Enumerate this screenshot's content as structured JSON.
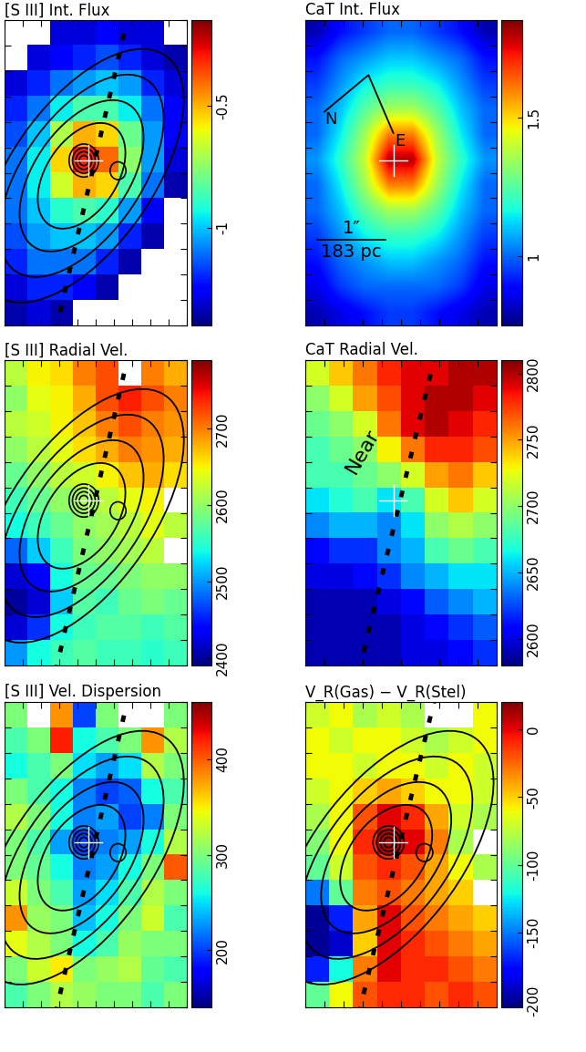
{
  "chart_data": [
    {
      "type": "heatmap",
      "title": "[S III] Int. Flux",
      "tick_labels": false,
      "clim": [
        -1.4,
        -0.15
      ],
      "cticks": [
        -1,
        -0.5
      ],
      "cells": [
        [
          null,
          null,
          -1.3,
          -1.3,
          -1.25,
          -1.3,
          -1.3,
          null
        ],
        [
          null,
          -1.3,
          -1.25,
          -1.2,
          -1.15,
          -1.2,
          -1.3,
          -1.35
        ],
        [
          -1.3,
          -1.2,
          -1.1,
          -1.05,
          -1.0,
          -1.05,
          -1.2,
          -1.3
        ],
        [
          -1.2,
          -1.1,
          -0.95,
          -0.85,
          -0.85,
          -0.95,
          -1.1,
          -1.25
        ],
        [
          -1.15,
          -1.0,
          -0.7,
          -0.5,
          -0.55,
          -0.8,
          -1.05,
          -1.25
        ],
        [
          -1.1,
          -0.95,
          -0.55,
          -0.3,
          -0.4,
          -0.75,
          -1.05,
          -1.3
        ],
        [
          -1.1,
          -0.95,
          -0.65,
          -0.5,
          -0.55,
          -0.85,
          -1.1,
          -1.35
        ],
        [
          -1.1,
          -1.0,
          -0.9,
          -0.85,
          -0.9,
          -1.05,
          -1.25,
          null
        ],
        [
          -1.15,
          -1.05,
          -1.0,
          -1.0,
          -1.05,
          -1.2,
          -1.35,
          null
        ],
        [
          -1.2,
          -1.1,
          -1.1,
          -1.1,
          -1.2,
          -1.35,
          null,
          null
        ],
        [
          -1.3,
          -1.2,
          -1.2,
          -1.25,
          -1.35,
          null,
          null,
          null
        ],
        [
          -1.35,
          -1.3,
          -1.35,
          null,
          null,
          null,
          null,
          null
        ]
      ],
      "annotations": []
    },
    {
      "type": "heatmap",
      "title": "CaT Int. Flux",
      "tick_labels": false,
      "clim": [
        0.75,
        1.85
      ],
      "cticks": [
        1,
        1.5
      ],
      "cells": [
        [
          0.8,
          0.9,
          0.95,
          1.0,
          1.0,
          0.95,
          0.9,
          0.8
        ],
        [
          0.9,
          1.0,
          1.05,
          1.1,
          1.1,
          1.05,
          1.0,
          0.9
        ],
        [
          0.95,
          1.05,
          1.15,
          1.2,
          1.2,
          1.15,
          1.05,
          0.95
        ],
        [
          1.0,
          1.1,
          1.25,
          1.35,
          1.35,
          1.25,
          1.1,
          1.0
        ],
        [
          1.0,
          1.15,
          1.35,
          1.6,
          1.6,
          1.35,
          1.15,
          1.0
        ],
        [
          1.05,
          1.2,
          1.4,
          1.8,
          1.8,
          1.4,
          1.2,
          1.05
        ],
        [
          1.0,
          1.15,
          1.35,
          1.6,
          1.6,
          1.35,
          1.15,
          1.0
        ],
        [
          1.0,
          1.1,
          1.25,
          1.35,
          1.35,
          1.25,
          1.1,
          1.0
        ],
        [
          0.95,
          1.05,
          1.15,
          1.2,
          1.2,
          1.15,
          1.05,
          0.95
        ],
        [
          0.9,
          1.0,
          1.05,
          1.1,
          1.1,
          1.05,
          1.0,
          0.9
        ],
        [
          0.85,
          0.95,
          1.0,
          1.0,
          1.0,
          1.0,
          0.95,
          0.85
        ],
        [
          0.8,
          0.85,
          0.9,
          0.95,
          0.95,
          0.9,
          0.85,
          0.8
        ]
      ],
      "annotations": [
        "N",
        "E",
        "1″",
        "183 pc"
      ]
    },
    {
      "type": "heatmap",
      "title": "[S III] Radial Vel.",
      "tick_labels": false,
      "clim": [
        2390,
        2790
      ],
      "cticks": [
        2400,
        2500,
        2600,
        2700
      ],
      "cells": [
        [
          2620,
          2650,
          2660,
          2700,
          2720,
          null,
          2700,
          2680
        ],
        [
          2600,
          2640,
          2650,
          2680,
          2720,
          2740,
          2720,
          2700
        ],
        [
          2620,
          2630,
          2650,
          2670,
          2700,
          2720,
          2700,
          2690
        ],
        [
          2600,
          2620,
          2640,
          2660,
          2680,
          2700,
          2690,
          2680
        ],
        [
          2580,
          2600,
          2620,
          2630,
          2650,
          2670,
          2680,
          2660
        ],
        [
          2560,
          2580,
          2600,
          2610,
          2620,
          2640,
          2650,
          null
        ],
        [
          2540,
          2560,
          2580,
          2600,
          2610,
          2620,
          2640,
          2620
        ],
        [
          2480,
          2520,
          2560,
          2590,
          2600,
          2610,
          2620,
          null
        ],
        [
          2420,
          2440,
          2540,
          2580,
          2580,
          2590,
          2600,
          2600
        ],
        [
          2400,
          2420,
          2520,
          2570,
          2560,
          2580,
          2590,
          2580
        ],
        [
          2420,
          2460,
          2540,
          2560,
          2570,
          2570,
          2560,
          2570
        ],
        [
          2500,
          2540,
          2560,
          2570,
          2560,
          2560,
          2550,
          2560
        ]
      ],
      "annotations": []
    },
    {
      "type": "heatmap",
      "title": "CaT Radial Vel.",
      "tick_labels": false,
      "clim": [
        2580,
        2810
      ],
      "cticks": [
        2600,
        2650,
        2700,
        2750,
        2800
      ],
      "cells": [
        [
          2720,
          2740,
          2760,
          2780,
          2790,
          2790,
          2800,
          2800
        ],
        [
          2700,
          2720,
          2750,
          2770,
          2790,
          2800,
          2800,
          2790
        ],
        [
          2690,
          2700,
          2720,
          2760,
          2790,
          2800,
          2790,
          2780
        ],
        [
          2680,
          2690,
          2700,
          2730,
          2760,
          2780,
          2780,
          2770
        ],
        [
          2680,
          2680,
          2690,
          2700,
          2720,
          2750,
          2760,
          2740
        ],
        [
          2660,
          2670,
          2680,
          2660,
          2680,
          2720,
          2740,
          2720
        ],
        [
          2640,
          2650,
          2650,
          2640,
          2660,
          2700,
          2710,
          2700
        ],
        [
          2610,
          2620,
          2620,
          2640,
          2650,
          2680,
          2690,
          2680
        ],
        [
          2600,
          2600,
          2610,
          2620,
          2640,
          2650,
          2660,
          2660
        ],
        [
          2590,
          2590,
          2590,
          2600,
          2610,
          2630,
          2640,
          2650
        ],
        [
          2590,
          2590,
          2590,
          2590,
          2600,
          2610,
          2620,
          2630
        ],
        [
          2590,
          2590,
          2590,
          2590,
          2600,
          2600,
          2610,
          2620
        ]
      ],
      "annotations": [
        "Near"
      ]
    },
    {
      "type": "heatmap",
      "title": "[S III] Vel. Dispersion",
      "tick_labels": false,
      "clim": [
        140,
        460
      ],
      "cticks": [
        200,
        300,
        400
      ],
      "cells": [
        [
          300,
          null,
          380,
          200,
          300,
          null,
          null,
          300
        ],
        [
          280,
          300,
          420,
          260,
          280,
          300,
          380,
          320
        ],
        [
          260,
          280,
          300,
          250,
          230,
          250,
          320,
          300
        ],
        [
          300,
          280,
          260,
          220,
          200,
          210,
          260,
          280
        ],
        [
          320,
          300,
          260,
          220,
          230,
          200,
          220,
          300
        ],
        [
          300,
          280,
          230,
          200,
          220,
          230,
          260,
          320
        ],
        [
          300,
          290,
          260,
          220,
          230,
          260,
          300,
          400
        ],
        [
          330,
          300,
          280,
          230,
          250,
          280,
          320,
          300
        ],
        [
          380,
          310,
          300,
          240,
          260,
          300,
          330,
          280
        ],
        [
          340,
          320,
          300,
          260,
          280,
          310,
          300,
          300
        ],
        [
          300,
          330,
          350,
          300,
          310,
          320,
          290,
          280
        ],
        [
          280,
          300,
          320,
          310,
          300,
          300,
          280,
          300
        ]
      ],
      "annotations": []
    },
    {
      "type": "heatmap",
      "title": "V_R(Gas) − V_R(Stel)",
      "tick_labels": false,
      "clim": [
        -205,
        20
      ],
      "cticks": [
        -200,
        -150,
        -100,
        -50,
        0
      ],
      "cells": [
        [
          -70,
          -60,
          -80,
          -70,
          -80,
          null,
          null,
          -60
        ],
        [
          -60,
          -70,
          -60,
          -60,
          -70,
          -80,
          -70,
          -60
        ],
        [
          -60,
          -60,
          -70,
          -60,
          -60,
          -70,
          -60,
          -70
        ],
        [
          -70,
          -60,
          -50,
          -40,
          -50,
          -60,
          -60,
          -70
        ],
        [
          -80,
          -60,
          -20,
          0,
          -10,
          -40,
          -70,
          -80
        ],
        [
          -90,
          -60,
          -10,
          10,
          0,
          -30,
          -80,
          null
        ],
        [
          -100,
          -70,
          -20,
          -10,
          -20,
          -40,
          -60,
          -80
        ],
        [
          -150,
          -100,
          -30,
          -20,
          -30,
          -40,
          -50,
          null
        ],
        [
          -200,
          -170,
          -40,
          0,
          -20,
          -30,
          -40,
          -50
        ],
        [
          -200,
          -190,
          -50,
          0,
          -10,
          -20,
          -30,
          -40
        ],
        [
          -170,
          -120,
          -30,
          0,
          -10,
          -10,
          -20,
          -30
        ],
        [
          -100,
          -60,
          -20,
          -10,
          -10,
          -20,
          -10,
          -20
        ]
      ],
      "annotations": []
    }
  ]
}
